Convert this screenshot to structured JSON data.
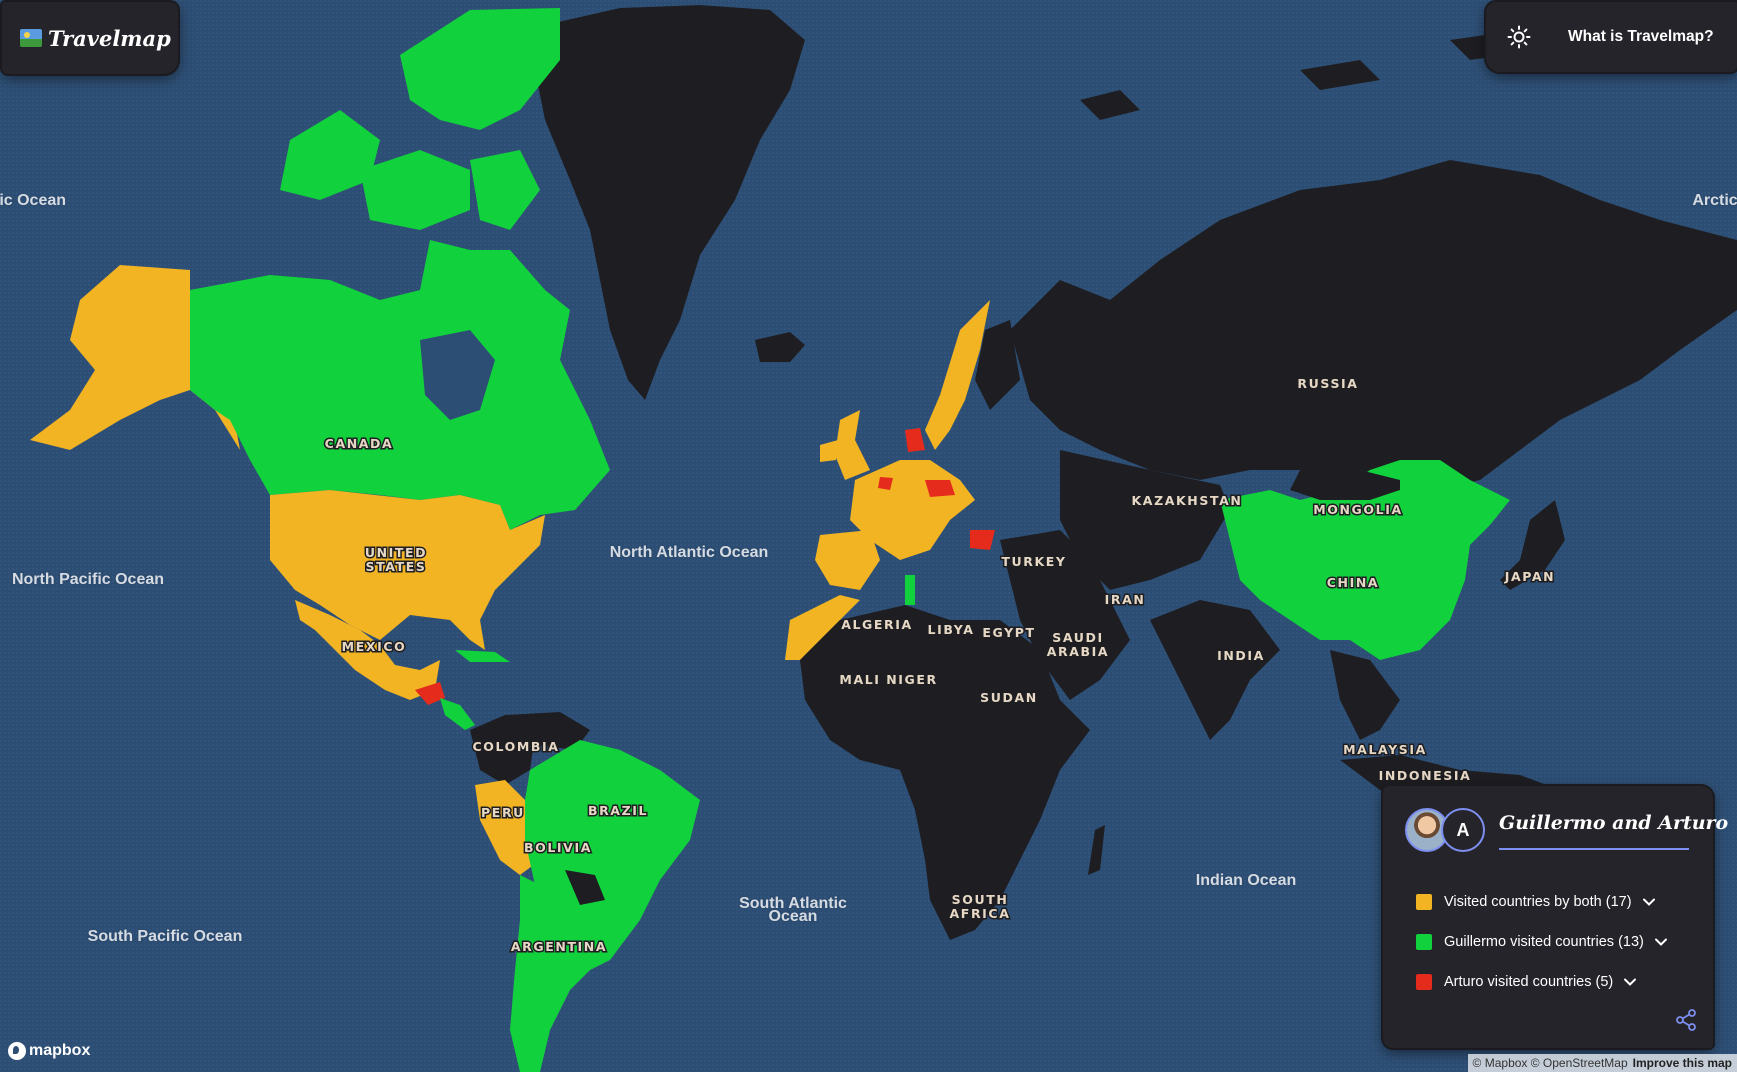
{
  "header": {
    "app_name": "Travelmap",
    "about_link": "What is Travelmap?"
  },
  "icons": {
    "theme": "sun-icon",
    "share": "share-icon",
    "expand": "chevron-down-icon"
  },
  "colors": {
    "both": "#f2b422",
    "guillermo": "#11d13d",
    "arturo": "#e42b1c",
    "unvisited": "#1e1e22",
    "ocean": "#2d4e74"
  },
  "legend": {
    "title": "Guillermo and Arturo",
    "avatar_initial": "A",
    "items": [
      {
        "label": "Visited countries by both (17)",
        "color": "#f2b422"
      },
      {
        "label": "Guillermo visited countries (13)",
        "color": "#11d13d"
      },
      {
        "label": "Arturo visited countries (5)",
        "color": "#e42b1c"
      }
    ]
  },
  "map_labels": {
    "countries": [
      "CANADA",
      "UNITED",
      "STATES",
      "MEXICO",
      "COLOMBIA",
      "PERU",
      "BRAZIL",
      "BOLIVIA",
      "ARGENTINA",
      "ALGERIA",
      "LIBYA",
      "EGYPT",
      "MALI",
      "NIGER",
      "SUDAN",
      "SAUDI",
      "ARABIA",
      "SOUTH",
      "AFRICA",
      "TURKEY",
      "IRAN",
      "KAZAKHSTAN",
      "RUSSIA",
      "MONGOLIA",
      "CHINA",
      "JAPAN",
      "INDIA",
      "MALAYSIA",
      "INDONESIA"
    ],
    "oceans": [
      "tic Ocean",
      "Arctic",
      "North Pacific Ocean",
      "North Atlantic Ocean",
      "South Atlantic",
      "Ocean",
      "South Pacific Ocean",
      "Indian Ocean"
    ]
  },
  "footer": {
    "logo_text": "mapbox",
    "attribution": "© Mapbox © OpenStreetMap",
    "improve": "Improve this map"
  }
}
